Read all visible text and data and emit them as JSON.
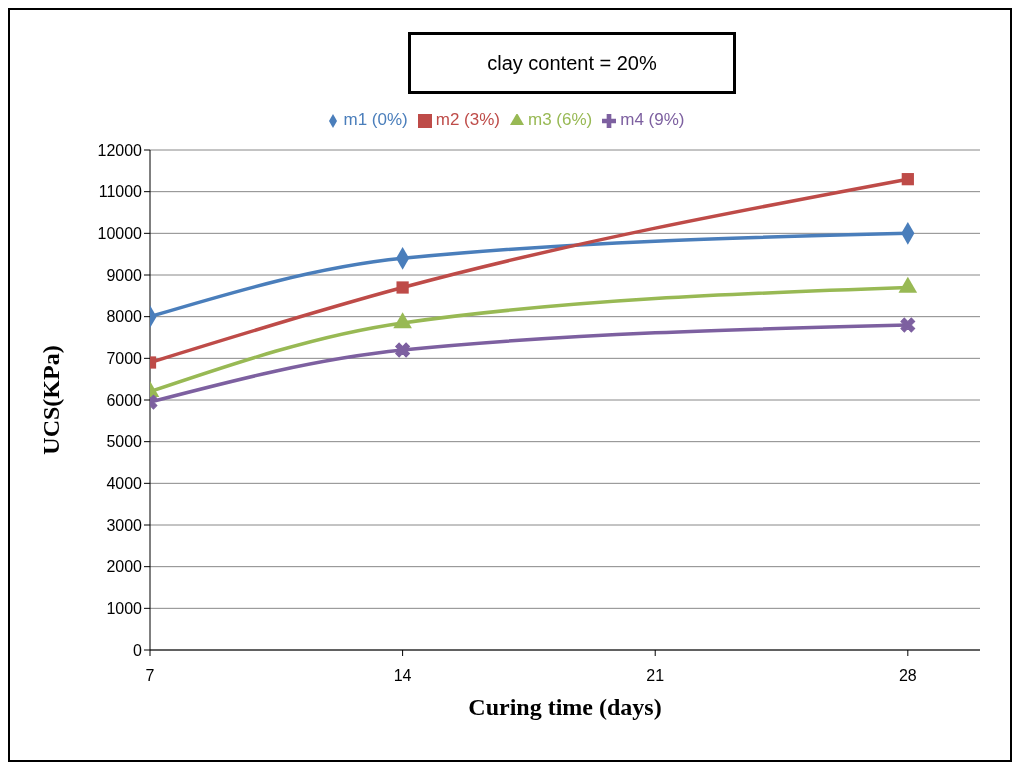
{
  "chart_data": {
    "type": "line",
    "title": "clay content = 20%",
    "xlabel": "Curing time (days)",
    "ylabel": "UCS(KPa)",
    "x": [
      7,
      14,
      28
    ],
    "xlim": [
      7,
      30
    ],
    "xticks": [
      7,
      14,
      21,
      28
    ],
    "ylim": [
      0,
      12000
    ],
    "yticks": [
      0,
      1000,
      2000,
      3000,
      4000,
      5000,
      6000,
      7000,
      8000,
      9000,
      10000,
      11000,
      12000
    ],
    "grid": "y",
    "legend": "top",
    "series": [
      {
        "name": "m1 (0%)",
        "color": "#4a7ebb",
        "marker": "diamond",
        "values": [
          8000,
          9400,
          10000
        ]
      },
      {
        "name": "m2 (3%)",
        "color": "#be4b48",
        "marker": "square",
        "values": [
          6900,
          8700,
          11300
        ]
      },
      {
        "name": "m3 (6%)",
        "color": "#98b954",
        "marker": "triangle",
        "values": [
          6200,
          7850,
          8700
        ]
      },
      {
        "name": "m4 (9%)",
        "color": "#7d60a0",
        "marker": "cross",
        "values": [
          5950,
          7200,
          7800
        ]
      }
    ]
  }
}
